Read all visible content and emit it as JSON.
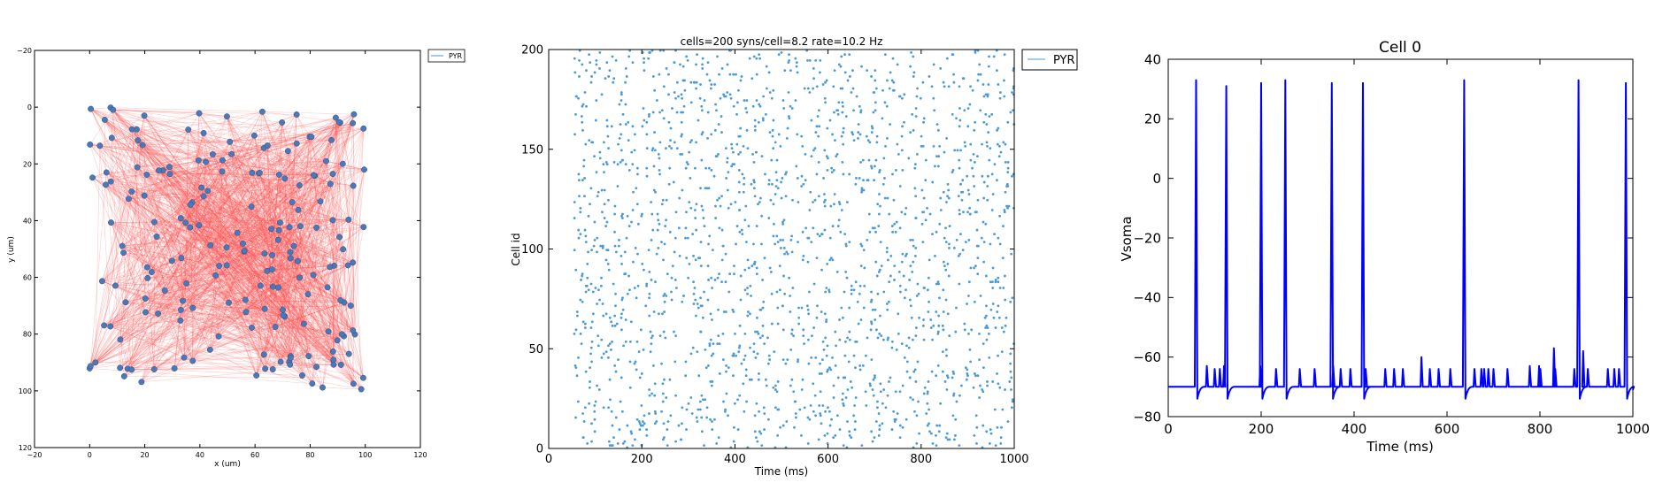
{
  "chart_data": [
    {
      "type": "scatter",
      "title": "",
      "xlabel": "x (um)",
      "ylabel": "y (um)",
      "xlim": [
        -20,
        120
      ],
      "ylim": [
        120,
        -20
      ],
      "y_inverted": true,
      "xticks": [
        "−20",
        "0",
        "20",
        "40",
        "60",
        "80",
        "100",
        "120"
      ],
      "yticks": [
        "−20",
        "0",
        "20",
        "40",
        "60",
        "80",
        "100",
        "120"
      ],
      "xtick_values": [
        -20,
        0,
        20,
        40,
        60,
        80,
        100,
        120
      ],
      "ytick_values": [
        -20,
        0,
        20,
        40,
        60,
        80,
        100,
        120
      ],
      "legend": {
        "entries": [
          "PYR"
        ],
        "placement": "outside-top-right"
      },
      "colors": {
        "cells": "#4a78b8",
        "connections": "#ff4a4a"
      },
      "cell_count": 200,
      "syns_per_cell": 8,
      "point_x_range": [
        0,
        100
      ],
      "point_y_range": [
        0,
        100
      ]
    },
    {
      "type": "scatter",
      "title": "cells=200 syns/cell=8.2 rate=10.2 Hz",
      "xlabel": "Time (ms)",
      "ylabel": "Cell id",
      "xlim": [
        0,
        1000
      ],
      "ylim": [
        0,
        200
      ],
      "xticks": [
        "0",
        "200",
        "400",
        "600",
        "800",
        "1000"
      ],
      "yticks": [
        "0",
        "50",
        "100",
        "150",
        "200"
      ],
      "xtick_values": [
        0,
        200,
        400,
        600,
        800,
        1000
      ],
      "ytick_values": [
        0,
        50,
        100,
        150,
        200
      ],
      "legend": {
        "entries": [
          "PYR"
        ],
        "placement": "outside-top-right"
      },
      "colors": {
        "spikes": "#4a9ad8"
      },
      "cells": 200,
      "rate_hz": 10.2,
      "first_spike_time_ms": 55
    },
    {
      "type": "line",
      "title": "Cell 0",
      "xlabel": "Time (ms)",
      "ylabel": "Vsoma",
      "xlim": [
        0,
        1000
      ],
      "ylim": [
        -80,
        40
      ],
      "xticks": [
        "0",
        "200",
        "400",
        "600",
        "800",
        "1000"
      ],
      "yticks": [
        "−80",
        "−60",
        "−40",
        "−20",
        "0",
        "20",
        "40"
      ],
      "xtick_values": [
        0,
        200,
        400,
        600,
        800,
        1000
      ],
      "ytick_values": [
        -80,
        -60,
        -40,
        -20,
        0,
        20,
        40
      ],
      "colors": {
        "trace": "#0000ff"
      },
      "resting_mv": -70,
      "spikes": [
        {
          "t": 60,
          "peak": 33
        },
        {
          "t": 125,
          "peak": 31
        },
        {
          "t": 200,
          "peak": 32
        },
        {
          "t": 252,
          "peak": 33
        },
        {
          "t": 352,
          "peak": 32
        },
        {
          "t": 419,
          "peak": 32
        },
        {
          "t": 637,
          "peak": 33
        },
        {
          "t": 883,
          "peak": 33
        },
        {
          "t": 985,
          "peak": 32
        }
      ],
      "epsps": [
        {
          "t": 83,
          "v": -63
        },
        {
          "t": 100,
          "v": -64
        },
        {
          "t": 111,
          "v": -64
        },
        {
          "t": 120,
          "v": -63
        },
        {
          "t": 198,
          "v": -63
        },
        {
          "t": 232,
          "v": -64
        },
        {
          "t": 283,
          "v": -64
        },
        {
          "t": 315,
          "v": -64
        },
        {
          "t": 355,
          "v": -63
        },
        {
          "t": 371,
          "v": -64
        },
        {
          "t": 392,
          "v": -64
        },
        {
          "t": 425,
          "v": -64
        },
        {
          "t": 467,
          "v": -64
        },
        {
          "t": 486,
          "v": -64
        },
        {
          "t": 505,
          "v": -64
        },
        {
          "t": 545,
          "v": -60
        },
        {
          "t": 563,
          "v": -64
        },
        {
          "t": 582,
          "v": -64
        },
        {
          "t": 607,
          "v": -64
        },
        {
          "t": 659,
          "v": -64
        },
        {
          "t": 674,
          "v": -64
        },
        {
          "t": 680,
          "v": -64
        },
        {
          "t": 689,
          "v": -64
        },
        {
          "t": 700,
          "v": -64
        },
        {
          "t": 730,
          "v": -64
        },
        {
          "t": 778,
          "v": -63
        },
        {
          "t": 798,
          "v": -63
        },
        {
          "t": 801,
          "v": -64
        },
        {
          "t": 830,
          "v": -57
        },
        {
          "t": 833,
          "v": -64
        },
        {
          "t": 874,
          "v": -64
        },
        {
          "t": 893,
          "v": -58
        },
        {
          "t": 903,
          "v": -64
        },
        {
          "t": 946,
          "v": -64
        },
        {
          "t": 960,
          "v": -64
        },
        {
          "t": 970,
          "v": -64
        }
      ]
    }
  ]
}
